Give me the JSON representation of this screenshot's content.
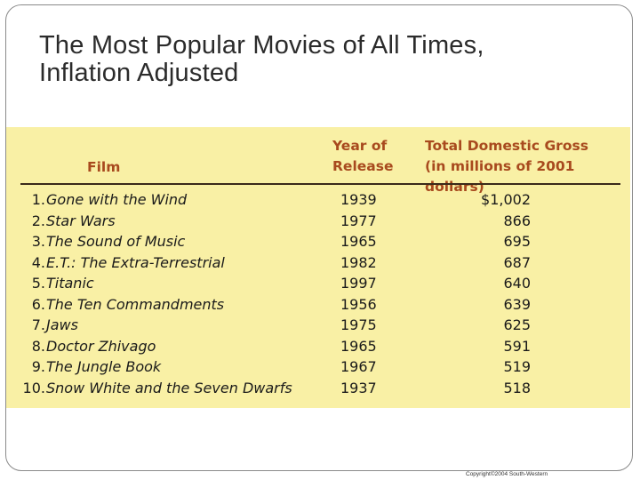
{
  "title": {
    "line1": "The Most Popular Movies of All Times,",
    "line2": "Inflation Adjusted"
  },
  "table": {
    "headers": {
      "film": "Film",
      "year_line1": "Year of",
      "year_line2": "Release",
      "gross_line1": "Total Domestic Gross",
      "gross_line2": "(in millions of 2001 dollars)"
    },
    "rows": [
      {
        "rank": "1.",
        "film": "Gone with the Wind",
        "year": "1939",
        "gross": "$1,002"
      },
      {
        "rank": "2.",
        "film": "Star Wars",
        "year": "1977",
        "gross": "866"
      },
      {
        "rank": "3.",
        "film": "The Sound of Music",
        "year": "1965",
        "gross": "695"
      },
      {
        "rank": "4.",
        "film": "E.T.: The Extra-Terrestrial",
        "year": "1982",
        "gross": "687"
      },
      {
        "rank": "5.",
        "film": "Titanic",
        "year": "1997",
        "gross": "640"
      },
      {
        "rank": "6.",
        "film": "The Ten Commandments",
        "year": "1956",
        "gross": "639"
      },
      {
        "rank": "7.",
        "film": "Jaws",
        "year": "1975",
        "gross": "625"
      },
      {
        "rank": "8.",
        "film": "Doctor Zhivago",
        "year": "1965",
        "gross": "591"
      },
      {
        "rank": "9.",
        "film": "The Jungle Book",
        "year": "1967",
        "gross": "519"
      },
      {
        "rank": "10.",
        "film": "Snow White and the Seven Dwarfs",
        "year": "1937",
        "gross": "518"
      }
    ]
  },
  "footer": {
    "copyright": "Copyright©2004  South-Western"
  },
  "colors": {
    "table_background": "#f9f0a5",
    "header_text": "#a84a1e"
  }
}
